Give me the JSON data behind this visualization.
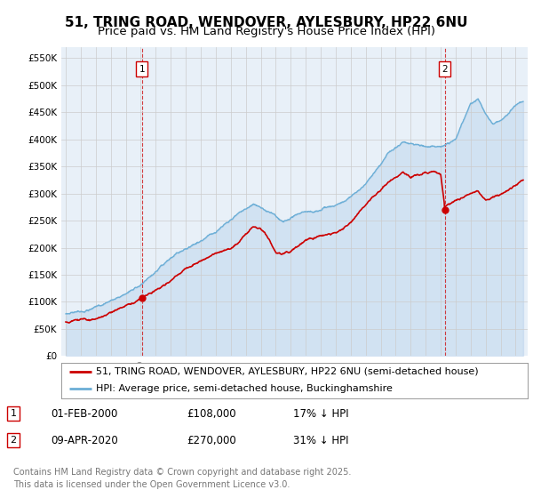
{
  "title": "51, TRING ROAD, WENDOVER, AYLESBURY, HP22 6NU",
  "subtitle": "Price paid vs. HM Land Registry's House Price Index (HPI)",
  "ylim": [
    0,
    570000
  ],
  "yticks": [
    0,
    50000,
    100000,
    150000,
    200000,
    250000,
    300000,
    350000,
    400000,
    450000,
    500000,
    550000
  ],
  "xlim_start": 1994.7,
  "xlim_end": 2025.8,
  "xticks": [
    1995,
    1996,
    1997,
    1998,
    1999,
    2000,
    2001,
    2002,
    2003,
    2004,
    2005,
    2006,
    2007,
    2008,
    2009,
    2010,
    2011,
    2012,
    2013,
    2014,
    2015,
    2016,
    2017,
    2018,
    2019,
    2020,
    2021,
    2022,
    2023,
    2024,
    2025
  ],
  "property_color": "#cc0000",
  "hpi_color": "#6baed6",
  "hpi_fill_color": "#ddeeff",
  "marker1_x": 2000.08,
  "marker1_y": 108000,
  "marker2_x": 2020.27,
  "marker2_y": 270000,
  "vline1_x": 2000.08,
  "vline2_x": 2020.27,
  "legend_property": "51, TRING ROAD, WENDOVER, AYLESBURY, HP22 6NU (semi-detached house)",
  "legend_hpi": "HPI: Average price, semi-detached house, Buckinghamshire",
  "footer": "Contains HM Land Registry data © Crown copyright and database right 2025.\nThis data is licensed under the Open Government Licence v3.0.",
  "background_color": "#ffffff",
  "chart_bg_color": "#e8f0f8",
  "grid_color": "#cccccc",
  "title_fontsize": 11,
  "subtitle_fontsize": 9.5,
  "tick_fontsize": 7.5,
  "legend_fontsize": 8,
  "footer_fontsize": 7
}
